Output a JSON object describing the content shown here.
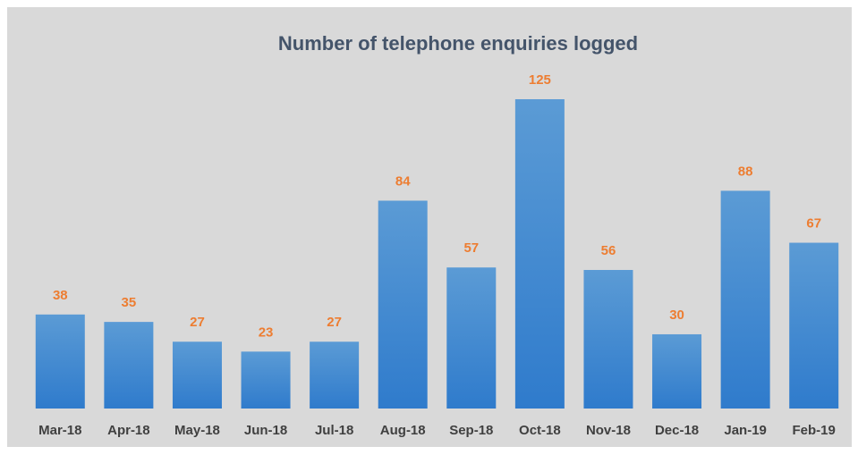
{
  "chart_data": {
    "type": "bar",
    "title": "Number of telephone enquiries logged",
    "categories": [
      "Mar-18",
      "Apr-18",
      "May-18",
      "Jun-18",
      "Jul-18",
      "Aug-18",
      "Sep-18",
      "Oct-18",
      "Nov-18",
      "Dec-18",
      "Jan-19",
      "Feb-19"
    ],
    "values": [
      38,
      35,
      27,
      23,
      27,
      84,
      57,
      125,
      56,
      30,
      88,
      67
    ],
    "color": "#5b9bd5",
    "value_label_color": "#ed7d31"
  }
}
